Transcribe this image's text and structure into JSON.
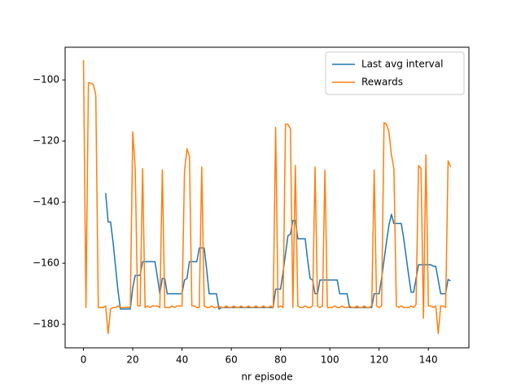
{
  "chart_data": {
    "type": "line",
    "xlabel": "nr episode",
    "x": [
      0,
      1,
      2,
      3,
      4,
      5,
      6,
      7,
      8,
      9,
      10,
      11,
      12,
      13,
      14,
      15,
      16,
      17,
      18,
      19,
      20,
      21,
      22,
      23,
      24,
      25,
      26,
      27,
      28,
      29,
      30,
      31,
      32,
      33,
      34,
      35,
      36,
      37,
      38,
      39,
      40,
      41,
      42,
      43,
      44,
      45,
      46,
      47,
      48,
      49,
      50,
      51,
      52,
      53,
      54,
      55,
      56,
      57,
      58,
      59,
      60,
      61,
      62,
      63,
      64,
      65,
      66,
      67,
      68,
      69,
      70,
      71,
      72,
      73,
      74,
      75,
      76,
      77,
      78,
      79,
      80,
      81,
      82,
      83,
      84,
      85,
      86,
      87,
      88,
      89,
      90,
      91,
      92,
      93,
      94,
      95,
      96,
      97,
      98,
      99,
      100,
      101,
      102,
      103,
      104,
      105,
      106,
      107,
      108,
      109,
      110,
      111,
      112,
      113,
      114,
      115,
      116,
      117,
      118,
      119,
      120,
      121,
      122,
      123,
      124,
      125,
      126,
      127,
      128,
      129,
      130,
      131,
      132,
      133,
      134,
      135,
      136,
      137,
      138,
      139,
      140,
      141,
      142,
      143,
      144,
      145,
      146,
      147,
      148,
      149
    ],
    "series": [
      {
        "name": "Last avg interval",
        "color": "#1f77b4",
        "values": [
          null,
          null,
          null,
          null,
          null,
          null,
          null,
          null,
          null,
          -137,
          -146.5,
          -146.5,
          -153,
          -161,
          -169,
          -175,
          -175,
          -175,
          -175,
          -175,
          -168,
          -164,
          -164,
          -164,
          -159.5,
          -159.5,
          -159.5,
          -159.5,
          -159.5,
          -159.5,
          -164.5,
          -170,
          -165,
          -165,
          -170,
          -170,
          -170,
          -170,
          -170,
          -170,
          -170,
          -165.5,
          -165,
          -159.5,
          -159.5,
          -159.5,
          -159.5,
          -155,
          -155,
          -155,
          -162,
          -170,
          -170,
          -170,
          -170,
          -175,
          -174.5,
          -174.5,
          -174.5,
          -174.5,
          -174.5,
          -174.5,
          -174.5,
          -174.5,
          -174.5,
          -174.5,
          -174.5,
          -174.5,
          -174.5,
          -174.5,
          -174.5,
          -174.5,
          -174.5,
          -174.5,
          -174.5,
          -174.5,
          -174.5,
          -174.5,
          -168.5,
          -168.5,
          -168.5,
          -163,
          -157,
          -151,
          -150.5,
          -146,
          -146,
          -152,
          -152,
          -152,
          -152,
          -159,
          -165,
          -165.5,
          -170,
          -170,
          -165.5,
          -165.5,
          -165.5,
          -165.5,
          -165.5,
          -165.5,
          -165.5,
          -165.5,
          -170,
          -170,
          -170,
          -170,
          -174.5,
          -174.5,
          -174.5,
          -174.5,
          -174.5,
          -174.5,
          -174.5,
          -174.5,
          -174.5,
          -174.5,
          -170,
          -170,
          -170,
          -165,
          -159,
          -153,
          -147.5,
          -144,
          -147,
          -147,
          -147,
          -147,
          -152,
          -158,
          -164,
          -169.5,
          -169.5,
          -165,
          -160.5,
          -160.5,
          -160.5,
          -160.5,
          -160.5,
          -160.5,
          -161,
          -161,
          -165.5,
          -170,
          -170,
          -170,
          -165.3,
          -165.8
        ]
      },
      {
        "name": "Rewards",
        "color": "#ff7f0e",
        "values": [
          -93.5,
          -174.5,
          -101,
          -101,
          -101.5,
          -105,
          -174.5,
          -174.5,
          -174.5,
          -174,
          -183,
          -175,
          -174.5,
          -174.5,
          -174,
          -174.5,
          -174.5,
          -174.5,
          -174.5,
          -174.5,
          -117,
          -129,
          -174,
          -174,
          -129,
          -174.5,
          -174,
          -174.5,
          -174,
          -174,
          -174,
          -174.5,
          -129.5,
          -174.5,
          -174.5,
          -174.5,
          -174,
          -174.5,
          -174,
          -174,
          -174,
          -130,
          -122.5,
          -125,
          -174,
          -174,
          -174.5,
          -174.5,
          -128.5,
          -174,
          -174.5,
          -174.5,
          -174,
          -174.5,
          -174.5,
          -174,
          -174.5,
          -174.5,
          -174,
          -174.5,
          -174.5,
          -174,
          -174.5,
          -174.5,
          -174,
          -174.5,
          -174.5,
          -174,
          -174.5,
          -174.5,
          -174,
          -174.5,
          -174.5,
          -174,
          -174.5,
          -174.5,
          -174,
          -174.5,
          -115.5,
          -174.5,
          -174,
          -174.5,
          -114.5,
          -114.5,
          -116,
          -174.5,
          -128,
          -174,
          -174.5,
          -174.5,
          -174,
          -174.5,
          -174.5,
          -174,
          -128.5,
          -174,
          -174.5,
          -174,
          -129.5,
          -174.5,
          -174.5,
          -174.5,
          -174,
          -174.5,
          -174.5,
          -174,
          -174.5,
          -174.5,
          -174,
          -174.5,
          -174.5,
          -174,
          -174.5,
          -174.5,
          -174,
          -174.5,
          -174.5,
          -174,
          -129.5,
          -174,
          -174.5,
          -174,
          -114,
          -114.5,
          -117,
          -124.5,
          -129,
          -174,
          -174.5,
          -174,
          -174.5,
          -174.5,
          -174.5,
          -174,
          -174.5,
          -173.5,
          -128,
          -129,
          -178,
          -124.5,
          -174,
          -174,
          -174.5,
          -174,
          -183,
          -174,
          -174,
          -174.5,
          -126.5,
          -128.5
        ]
      }
    ],
    "xlim": [
      -7.45,
      156.45
    ],
    "ylim": [
      -187.7,
      -89.3
    ],
    "xticks": [
      0,
      20,
      40,
      60,
      80,
      100,
      120,
      140
    ],
    "yticks": [
      {
        "value": -180,
        "label": "−180"
      },
      {
        "value": -160,
        "label": "−160"
      },
      {
        "value": -140,
        "label": "−140"
      },
      {
        "value": -120,
        "label": "−120"
      },
      {
        "value": -100,
        "label": "−100"
      }
    ],
    "legend": "upper right"
  }
}
